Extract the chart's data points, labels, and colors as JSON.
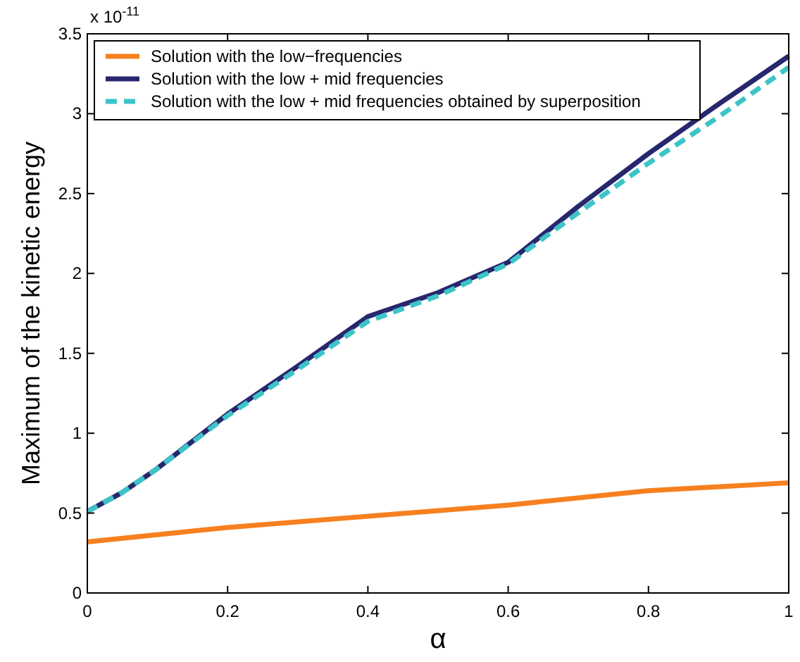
{
  "chart_data": {
    "type": "line",
    "xlabel": "α",
    "ylabel": "Maximum of the kinetic energy",
    "annotations": [
      "x 10$^{-11}$"
    ],
    "xlim": [
      0,
      1
    ],
    "xticks": [
      0,
      0.2,
      0.4,
      0.6,
      0.8,
      1
    ],
    "ylim": [
      0,
      3.5
    ],
    "yticks": [
      0,
      0.5,
      1,
      1.5,
      2,
      2.5,
      3,
      3.5
    ],
    "legend": "top left",
    "grid": false,
    "series": [
      {
        "name": "Solution with the low−frequencies",
        "color": "#f7801f",
        "line_style": "solid",
        "x": [
          0,
          0.2,
          0.4,
          0.6,
          0.8,
          1
        ],
        "values": [
          0.32,
          0.41,
          0.48,
          0.55,
          0.64,
          0.69
        ]
      },
      {
        "name": "Solution with the low + mid frequencies",
        "color": "#27276e",
        "line_style": "solid",
        "x": [
          0,
          0.05,
          0.1,
          0.2,
          0.3,
          0.4,
          0.5,
          0.6,
          0.7,
          0.8,
          0.9,
          1
        ],
        "values": [
          0.51,
          0.63,
          0.78,
          1.12,
          1.42,
          1.73,
          1.88,
          2.07,
          2.42,
          2.75,
          3.06,
          3.36
        ]
      },
      {
        "name": "Solution with the low + mid frequencies obtained by superposition",
        "color": "#3cc4c8",
        "line_style": "dashed",
        "x": [
          0,
          0.05,
          0.1,
          0.2,
          0.3,
          0.4,
          0.5,
          0.6,
          0.7,
          0.8,
          0.9,
          1
        ],
        "values": [
          0.51,
          0.63,
          0.78,
          1.11,
          1.4,
          1.7,
          1.86,
          2.06,
          2.38,
          2.69,
          2.98,
          3.29
        ]
      }
    ]
  }
}
